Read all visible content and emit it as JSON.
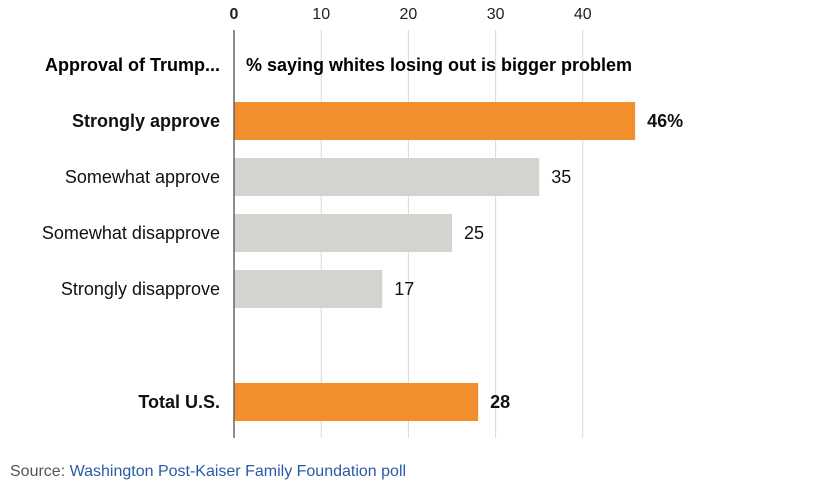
{
  "chart_data": {
    "type": "bar",
    "orientation": "horizontal",
    "category_header": "Approval of Trump...",
    "value_header": "% saying whites losing out is bigger problem",
    "categories": [
      "Strongly approve",
      "Somewhat approve",
      "Somewhat disapprove",
      "Strongly disapprove",
      "Total U.S."
    ],
    "values": [
      46,
      35,
      25,
      17,
      28
    ],
    "value_labels": [
      "46%",
      "35",
      "25",
      "17",
      "28"
    ],
    "highlighted": [
      true,
      false,
      false,
      false,
      true
    ],
    "bold_labels": [
      true,
      false,
      false,
      false,
      true
    ],
    "xticks": [
      0,
      10,
      20,
      30,
      40
    ],
    "xlim": [
      0,
      50
    ],
    "grid": true,
    "colors": {
      "highlight": "#f28e2b",
      "default": "#d3d3cf",
      "grid": "#d8d8d8",
      "axis": "#666666"
    }
  },
  "footer": {
    "source_label": "Source: ",
    "source_link": "Washington Post-Kaiser Family Foundation poll"
  }
}
